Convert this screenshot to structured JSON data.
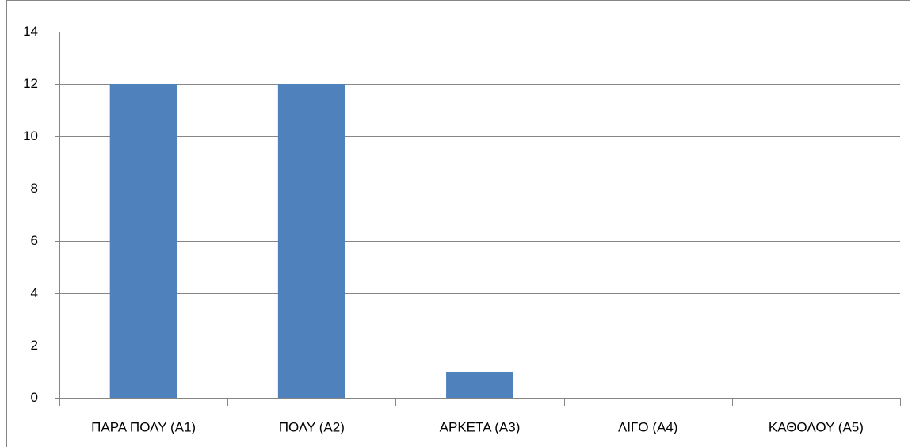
{
  "chart_data": {
    "type": "bar",
    "categories": [
      "ΠΑΡΑ ΠΟΛΥ (Α1)",
      "ΠΟΛΥ (Α2)",
      "ΑΡΚΕΤΑ (Α3)",
      "ΛΙΓΟ (Α4)",
      "ΚΑΘΟΛΟΥ (Α5)"
    ],
    "values": [
      12,
      12,
      1,
      0,
      0
    ],
    "color": "#4f81bd",
    "ylim": [
      0,
      14
    ],
    "yticks": [
      0,
      2,
      4,
      6,
      8,
      10,
      12,
      14
    ],
    "grid": true
  }
}
